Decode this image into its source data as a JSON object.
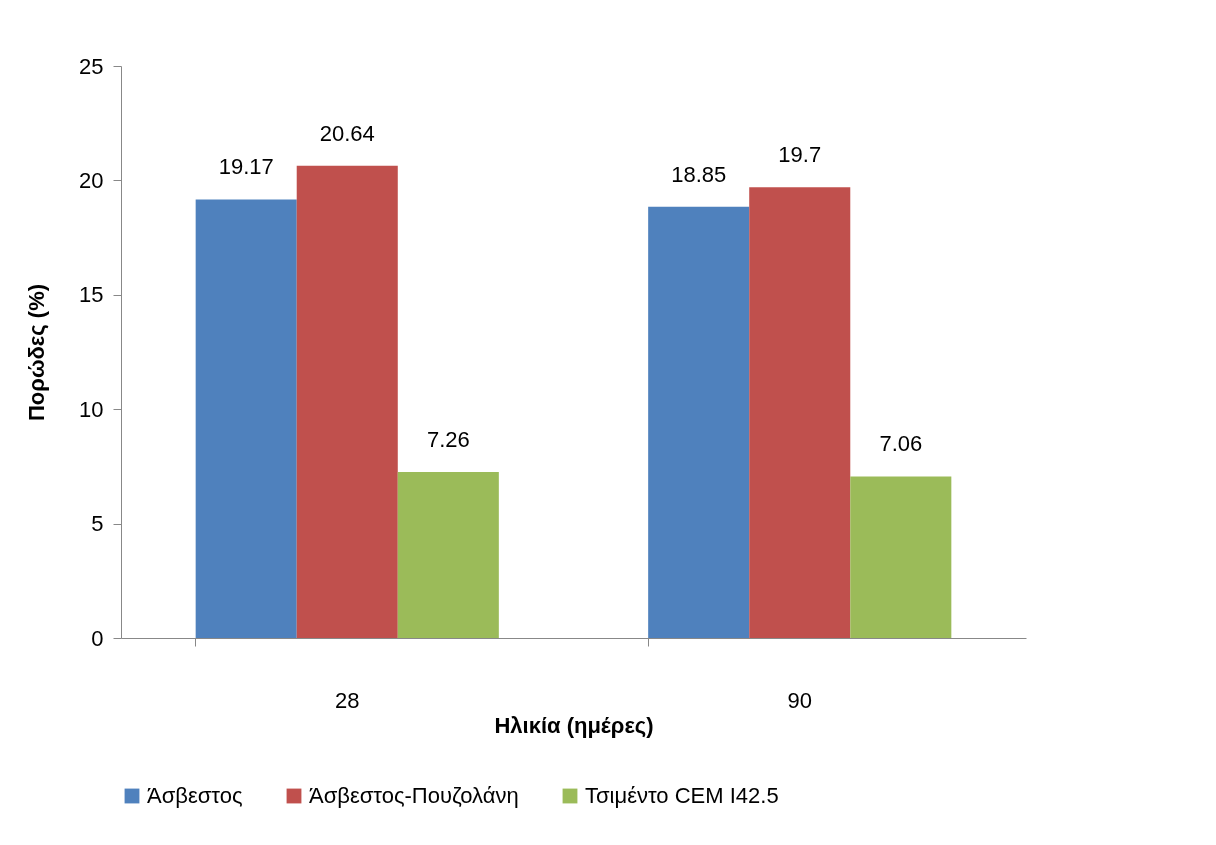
{
  "chart_data": {
    "type": "bar",
    "xlabel": "Ηλικία (ημέρες)",
    "ylabel": "Πορώδες (%)",
    "categories": [
      "28",
      "90"
    ],
    "series": [
      {
        "name": "Άσβεστος",
        "color": "#4f81bd",
        "values": [
          19.17,
          18.85
        ]
      },
      {
        "name": "Άσβεστος-Πουζολάνη",
        "color": "#c0504d",
        "values": [
          20.64,
          19.7
        ]
      },
      {
        "name": "Τσιμέντο CEM I42.5",
        "color": "#9bbb59",
        "values": [
          7.26,
          7.06
        ]
      }
    ],
    "ylim": [
      0,
      25
    ],
    "yticks": [
      0,
      5,
      10,
      15,
      20,
      25
    ],
    "grid": false,
    "legend": "bottom",
    "data_labels": true
  }
}
